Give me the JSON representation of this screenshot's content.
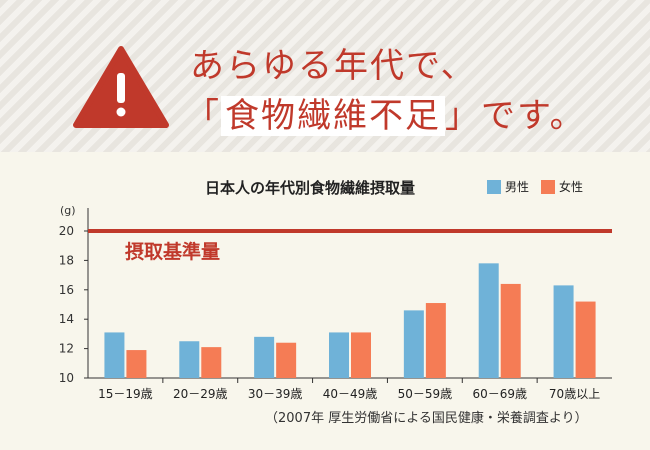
{
  "heading": {
    "line1": "あらゆる年代で、",
    "bracket_open": "「",
    "highlight": "食物繊維不足",
    "bracket_close": "」",
    "tail": "です。"
  },
  "colors": {
    "accent": "#c0392b",
    "male": "#6fb2d8",
    "female": "#f57c55",
    "warning": "#c0392b"
  },
  "icons": {
    "warning": "warning-triangle-icon"
  },
  "chart_data": {
    "type": "bar",
    "title": "日本人の年代別食物繊維摂取量",
    "unit_label": "(g)",
    "categories": [
      "15－19歳",
      "20－29歳",
      "30－39歳",
      "40－49歳",
      "50－59歳",
      "60－69歳",
      "70歳以上"
    ],
    "series": [
      {
        "name": "男性",
        "values": [
          13.1,
          12.5,
          12.8,
          13.1,
          14.6,
          17.8,
          16.3
        ]
      },
      {
        "name": "女性",
        "values": [
          11.9,
          12.1,
          12.4,
          13.1,
          15.1,
          16.4,
          15.2
        ]
      }
    ],
    "ylim": [
      10,
      20
    ],
    "yticks": [
      10,
      12,
      14,
      16,
      18,
      20
    ],
    "reference_line": {
      "value": 20,
      "label": "摂取基準量"
    },
    "legend_position": "top-right",
    "grid": false
  },
  "source": "（2007年 厚生労働省による国民健康・栄養調査より）"
}
